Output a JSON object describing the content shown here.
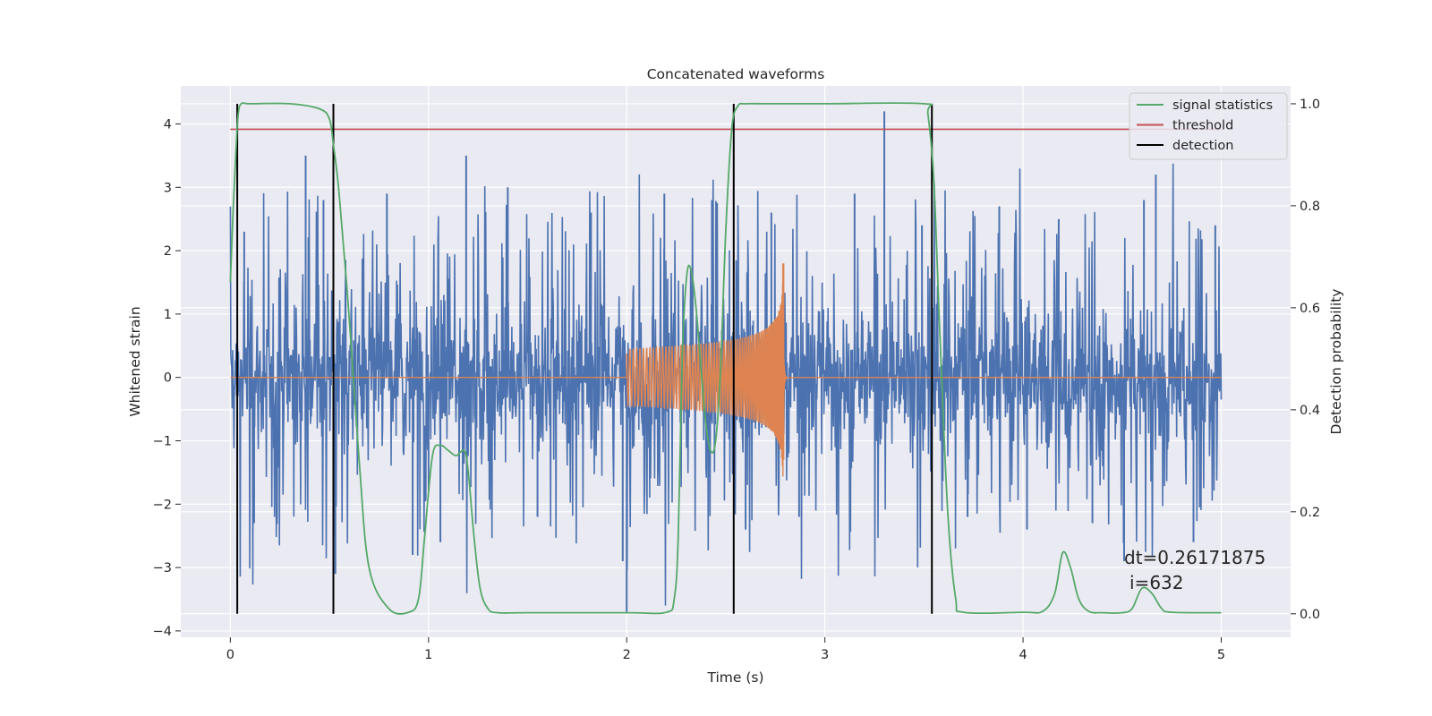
{
  "chart_data": {
    "type": "line",
    "title": "Concatenated waveforms",
    "xlabel": "Time (s)",
    "ylabel": "Whitened strain",
    "y2label": "Detection probability",
    "xlim": [
      -0.25,
      5.35
    ],
    "ylim": [
      -4.1,
      4.6
    ],
    "y2lim": [
      -0.046,
      1.035
    ],
    "x_ticks": [
      0,
      1,
      2,
      3,
      4,
      5
    ],
    "y_ticks": [
      -4,
      -3,
      -2,
      -1,
      0,
      1,
      2,
      3,
      4
    ],
    "y2_ticks": [
      0.0,
      0.2,
      0.4,
      0.6,
      0.8,
      1.0
    ],
    "x_tick_labels": [
      "0",
      "1",
      "2",
      "3",
      "4",
      "5"
    ],
    "y_tick_labels": [
      "−4",
      "−3",
      "−2",
      "−1",
      "0",
      "1",
      "2",
      "3",
      "4"
    ],
    "y2_tick_labels": [
      "0.0",
      "0.2",
      "0.4",
      "0.6",
      "0.8",
      "1.0"
    ],
    "grid": true,
    "legend_position": "top-right",
    "legend": [
      {
        "label": "signal statistics",
        "color": "#55a868"
      },
      {
        "label": "threshold",
        "color": "#c44e52"
      },
      {
        "label": "detection",
        "color": "#000000"
      }
    ],
    "series": [
      {
        "name": "whitened strain",
        "color": "#4c72b0",
        "axis": "left",
        "x_range": [
          0,
          5
        ],
        "envelope_typical": 1.4,
        "peaks": [
          [
            0.07,
            2.3
          ],
          [
            0.12,
            -2.3
          ],
          [
            0.38,
            3.5
          ],
          [
            0.47,
            2.8
          ],
          [
            0.53,
            -3.1
          ],
          [
            0.79,
            2.9
          ],
          [
            0.92,
            -2.8
          ],
          [
            1.06,
            -2.6
          ],
          [
            1.19,
            3.5
          ],
          [
            1.4,
            3.0
          ],
          [
            1.55,
            -2.2
          ],
          [
            1.82,
            2.6
          ],
          [
            1.98,
            -2.9
          ],
          [
            2.0,
            -3.7
          ],
          [
            2.19,
            2.9
          ],
          [
            2.43,
            2.8
          ],
          [
            2.6,
            -2.4
          ],
          [
            2.73,
            2.6
          ],
          [
            2.87,
            -2.2
          ],
          [
            3.15,
            2.9
          ],
          [
            3.3,
            4.2
          ],
          [
            3.49,
            2.4
          ],
          [
            3.72,
            -2.2
          ],
          [
            3.88,
            2.7
          ],
          [
            4.02,
            -2.4
          ],
          [
            4.18,
            2.5
          ],
          [
            4.35,
            -2.3
          ],
          [
            4.51,
            -2.9
          ],
          [
            4.61,
            2.8
          ],
          [
            4.67,
            3.2
          ],
          [
            4.86,
            -2.6
          ],
          [
            4.97,
            2.4
          ]
        ]
      },
      {
        "name": "injected waveform",
        "color": "#dd8452",
        "axis": "left",
        "start": 2.0,
        "merger": 2.79,
        "amplitude_start": 0.45,
        "amplitude_peak": 1.8,
        "amplitude_ringdown": -1.3
      },
      {
        "name": "signal statistics",
        "color": "#55a868",
        "axis": "right",
        "x": [
          0.0,
          0.015,
          0.03,
          0.04,
          0.055,
          0.1,
          0.3,
          0.45,
          0.5,
          0.52,
          0.55,
          0.6,
          0.65,
          0.7,
          0.8,
          0.9,
          0.95,
          0.98,
          1.02,
          1.06,
          1.1,
          1.14,
          1.18,
          1.2,
          1.23,
          1.26,
          1.3,
          1.35,
          1.5,
          2.0,
          2.2,
          2.24,
          2.26,
          2.28,
          2.3,
          2.32,
          2.35,
          2.4,
          2.44,
          2.47,
          2.5,
          2.53,
          2.56,
          2.6,
          2.7,
          2.8,
          3.0,
          3.5,
          3.52,
          3.55,
          3.58,
          3.62,
          3.66,
          3.7,
          4.0,
          4.1,
          4.16,
          4.2,
          4.24,
          4.28,
          4.33,
          4.4,
          4.5,
          4.55,
          4.6,
          4.65,
          4.7,
          4.75,
          5.0
        ],
        "y": [
          0.65,
          0.8,
          0.92,
          0.98,
          1.0,
          1.0,
          1.0,
          0.99,
          0.97,
          0.92,
          0.82,
          0.58,
          0.3,
          0.09,
          0.01,
          0.003,
          0.03,
          0.15,
          0.31,
          0.33,
          0.32,
          0.31,
          0.32,
          0.28,
          0.15,
          0.05,
          0.01,
          0.002,
          0.002,
          0.002,
          0.003,
          0.03,
          0.15,
          0.5,
          0.65,
          0.68,
          0.6,
          0.37,
          0.32,
          0.45,
          0.75,
          0.95,
          0.995,
          1.0,
          1.0,
          1.0,
          1.0,
          1.0,
          0.98,
          0.85,
          0.55,
          0.2,
          0.03,
          0.003,
          0.003,
          0.005,
          0.04,
          0.12,
          0.09,
          0.03,
          0.005,
          0.002,
          0.002,
          0.01,
          0.05,
          0.04,
          0.01,
          0.003,
          0.002
        ]
      },
      {
        "name": "threshold",
        "color": "#c44e52",
        "axis": "right",
        "value": 0.95,
        "x_range": [
          0,
          5
        ]
      },
      {
        "name": "detection",
        "color": "#000000",
        "axis": "right",
        "x": [
          0.035,
          0.52,
          2.54,
          3.54
        ],
        "y_range": [
          0,
          1
        ]
      }
    ],
    "annotation": {
      "line1": "dt=0.26171875",
      "line2": "i=632",
      "position_text": "lower-right"
    }
  }
}
